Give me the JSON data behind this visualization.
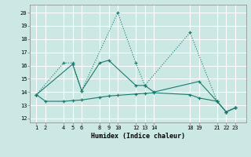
{
  "line1_x": [
    1,
    4,
    5,
    6,
    10,
    12,
    13,
    18,
    21,
    22,
    23
  ],
  "line1_y": [
    13.8,
    16.2,
    16.2,
    14.1,
    20.0,
    16.2,
    14.5,
    18.5,
    13.3,
    12.5,
    12.8
  ],
  "line2_x": [
    1,
    5,
    6,
    8,
    9,
    12,
    13,
    14,
    19,
    21,
    22,
    23
  ],
  "line2_y": [
    13.8,
    16.1,
    14.1,
    16.2,
    16.4,
    14.5,
    14.5,
    14.0,
    14.8,
    13.3,
    12.5,
    12.8
  ],
  "line3_x": [
    1,
    2,
    4,
    5,
    6,
    8,
    9,
    10,
    12,
    13,
    14,
    18,
    19,
    21,
    22,
    23
  ],
  "line3_y": [
    13.8,
    13.3,
    13.3,
    13.35,
    13.4,
    13.6,
    13.7,
    13.75,
    13.85,
    13.9,
    13.95,
    13.8,
    13.55,
    13.3,
    12.5,
    12.8
  ],
  "color": "#1a7a6e",
  "bg_color": "#cce8e4",
  "grid_color": "#f0fafa",
  "xlabel": "Humidex (Indice chaleur)",
  "xticks": [
    1,
    2,
    4,
    5,
    6,
    8,
    9,
    10,
    12,
    13,
    14,
    18,
    19,
    21,
    22,
    23
  ],
  "yticks": [
    12,
    13,
    14,
    15,
    16,
    17,
    18,
    19,
    20
  ],
  "xlim": [
    0.3,
    24.2
  ],
  "ylim": [
    11.7,
    20.6
  ]
}
